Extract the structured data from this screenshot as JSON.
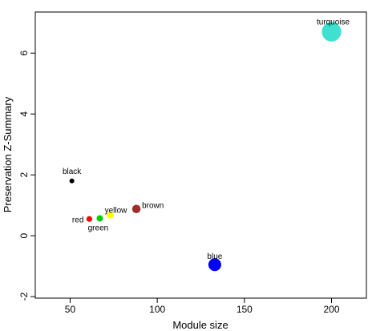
{
  "chart_data": {
    "type": "scatter",
    "xlabel": "Module size",
    "ylabel": "Preservation Z-Summary",
    "xlim": [
      30,
      220
    ],
    "ylim": [
      -2.05,
      7.35
    ],
    "xticks": [
      50,
      100,
      150,
      200
    ],
    "yticks": [
      -2,
      0,
      2,
      4,
      6
    ],
    "grid": false,
    "points": [
      {
        "label": "black",
        "x": 51,
        "y": 1.8,
        "color": "#000000",
        "size": 51
      },
      {
        "label": "red",
        "x": 61,
        "y": 0.55,
        "color": "#ff0000",
        "size": 61
      },
      {
        "label": "green",
        "x": 67,
        "y": 0.57,
        "color": "#00cd00",
        "size": 67
      },
      {
        "label": "yellow",
        "x": 73,
        "y": 0.68,
        "color": "#ffff00",
        "size": 73
      },
      {
        "label": "brown",
        "x": 88,
        "y": 0.88,
        "color": "#a52a2a",
        "size": 88
      },
      {
        "label": "blue",
        "x": 133,
        "y": -0.95,
        "color": "#0000ff",
        "size": 133
      },
      {
        "label": "turquoise",
        "x": 200,
        "y": 6.7,
        "color": "#40e0d0",
        "size": 200
      }
    ]
  }
}
